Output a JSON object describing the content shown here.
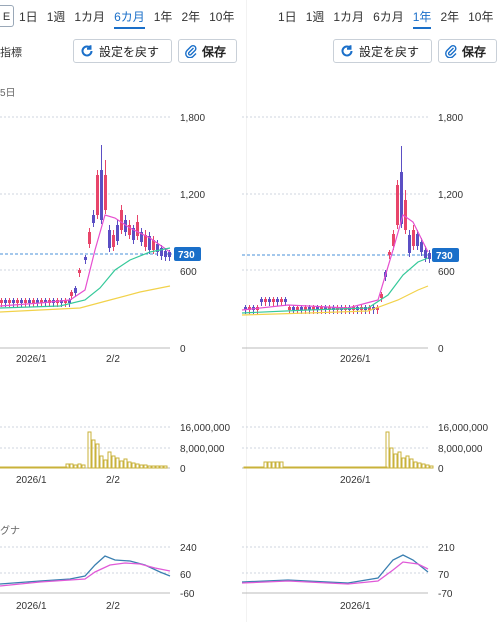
{
  "left": {
    "dropdown_glyph": "E",
    "tabs": [
      {
        "label": "1日",
        "active": false
      },
      {
        "label": "1週",
        "active": false
      },
      {
        "label": "1カ月",
        "active": false
      },
      {
        "label": "6カ月",
        "active": true
      },
      {
        "label": "1年",
        "active": false
      },
      {
        "label": "2年",
        "active": false
      },
      {
        "label": "10年",
        "active": false
      }
    ],
    "reset_label": "設定を戻す",
    "save_label": "保存",
    "cut_left_label": "指標",
    "cut_date_label": "5日",
    "price_axis": [
      "1,800",
      "1,200",
      "600",
      "0"
    ],
    "current_price": "730",
    "x_labels": [
      "2026/1",
      "2/2"
    ],
    "volume_axis": [
      "16,000,000",
      "8,000,000",
      "0"
    ],
    "volume_x_labels": [
      "2026/1",
      "2/2"
    ],
    "osc_title": "グナ",
    "osc_axis": [
      "240",
      "60",
      "-60"
    ],
    "osc_x_labels": [
      "2026/1",
      "2/2"
    ]
  },
  "right": {
    "tabs": [
      {
        "label": "1日",
        "active": false
      },
      {
        "label": "1週",
        "active": false
      },
      {
        "label": "1カ月",
        "active": false
      },
      {
        "label": "6カ月",
        "active": false
      },
      {
        "label": "1年",
        "active": true
      },
      {
        "label": "2年",
        "active": false
      },
      {
        "label": "10年",
        "active": false
      }
    ],
    "reset_label": "設定を戻す",
    "save_label": "保存",
    "price_axis": [
      "1,800",
      "1,200",
      "600",
      "0"
    ],
    "current_price": "730",
    "x_labels": [
      "2026/1"
    ],
    "volume_axis": [
      "16,000,000",
      "8,000,000",
      "0"
    ],
    "volume_x_labels": [
      "2026/1"
    ],
    "osc_axis": [
      "210",
      "70",
      "-70"
    ],
    "osc_x_labels": [
      "2026/1"
    ]
  },
  "colors": {
    "accent": "#1a6fc9",
    "up_candle": "#e8456a",
    "down_candle": "#5b4fc4",
    "ma_short": "#e64fd0",
    "ma_mid": "#35c99a",
    "ma_long": "#f2d24a",
    "volume": "#c9b23a",
    "osc_line1": "#3a7fb0",
    "osc_line2": "#e05ad8",
    "price_tag": "#1a6fc9"
  }
}
